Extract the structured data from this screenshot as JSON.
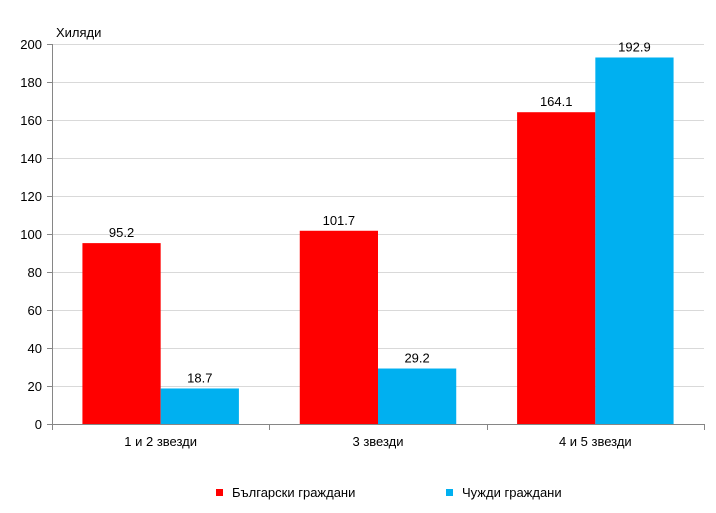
{
  "chart_data": {
    "type": "bar",
    "ylabel": "Хиляди",
    "xlabel": "",
    "title": "",
    "categories": [
      "1 и 2 звезди",
      "3 звезди",
      "4 и 5 звезди"
    ],
    "series": [
      {
        "name": "Български граждани",
        "color": "#ff0000",
        "values": [
          95.2,
          101.7,
          164.1
        ]
      },
      {
        "name": "Чужди граждани",
        "color": "#00b0f0",
        "values": [
          18.7,
          29.2,
          192.9
        ]
      }
    ],
    "ylim": [
      0,
      200
    ],
    "yticks": [
      0,
      20,
      40,
      60,
      80,
      100,
      120,
      140,
      160,
      180,
      200
    ],
    "grid": true,
    "legend": "bottom"
  }
}
